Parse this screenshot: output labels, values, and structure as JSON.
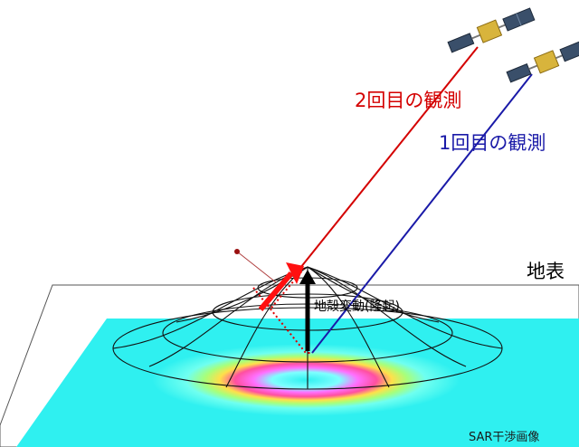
{
  "labels": {
    "observation_2": "2回目の観測",
    "observation_1": "1回目の観測",
    "ground_surface": "地表",
    "crustal_deformation": "地殻変動(隆起)",
    "sar_interferogram": "SAR干渉画像"
  },
  "colors": {
    "observation_2": "#d40000",
    "observation_1": "#1a1aa8",
    "interferogram_background": "#2ff0f0",
    "satellite_body": "#d8b43c",
    "satellite_panel": "#3a4f6a",
    "displacement_arrow": "#000000",
    "line_of_sight_arrow": "#ff1010"
  },
  "icons": {
    "satellite": "satellite-icon"
  }
}
